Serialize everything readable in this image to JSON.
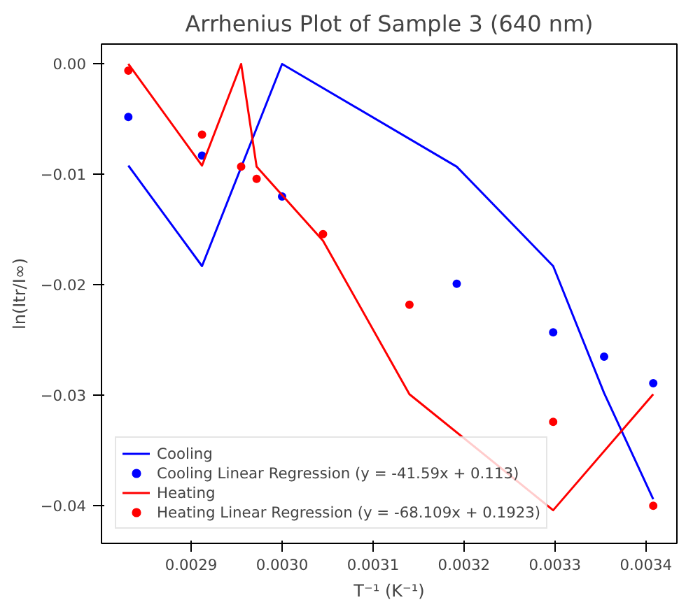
{
  "chart_data": {
    "type": "line",
    "title": "Arrhenius Plot of Sample 3 (640 nm)",
    "xlabel": "T⁻¹ (K⁻¹)",
    "ylabel": "ln(Itr/I∞)",
    "series": [
      {
        "name": "Cooling",
        "color": "#0000ff",
        "x": [
          0.002831,
          0.002912,
          0.003,
          0.003192,
          0.003298,
          0.003354,
          0.003408
        ],
        "values": [
          -0.0092,
          -0.0183,
          0.0,
          -0.0093,
          -0.0183,
          -0.0298,
          -0.0394
        ]
      },
      {
        "name": "Cooling Linear Regression (y = -41.59x + 0.113)",
        "type": "scatter",
        "marker": "circle",
        "color": "#0000ff",
        "x": [
          0.002831,
          0.002912,
          0.003,
          0.003192,
          0.003298,
          0.003354,
          0.003408
        ],
        "values": [
          -0.0048,
          -0.0083,
          -0.012,
          -0.0199,
          -0.0243,
          -0.0265,
          -0.0289
        ]
      },
      {
        "name": "Heating",
        "color": "#ff0000",
        "x": [
          0.002831,
          0.002912,
          0.002955,
          0.002972,
          0.003045,
          0.00314,
          0.003298,
          0.003408
        ],
        "values": [
          0.0,
          -0.0092,
          0.0,
          -0.0093,
          -0.016,
          -0.0299,
          -0.0404,
          -0.0299
        ]
      },
      {
        "name": "Heating Linear Regression (y = -68.109x + 0.1923)",
        "type": "scatter",
        "marker": "circle",
        "color": "#ff0000",
        "x": [
          0.002831,
          0.002912,
          0.002955,
          0.002972,
          0.003045,
          0.00314,
          0.003298,
          0.003408
        ],
        "values": [
          -0.0006,
          -0.0064,
          -0.0093,
          -0.0104,
          -0.0154,
          -0.0218,
          -0.0324,
          -0.04
        ]
      }
    ],
    "xlim": [
      0.0028015,
      0.003434
    ],
    "ylim": [
      -0.0434,
      0.0018
    ],
    "xticks": [
      0.0029,
      {
        "value": 0.003,
        "label": "0.0030"
      },
      0.0031,
      0.0032,
      0.0033,
      0.0034
    ],
    "yticks": [
      {
        "value": -0.04,
        "label": "−0.04"
      },
      {
        "value": -0.03,
        "label": "−0.03"
      },
      {
        "value": -0.02,
        "label": "−0.02"
      },
      {
        "value": -0.01,
        "label": "−0.01"
      },
      {
        "value": 0.0,
        "label": "0.00"
      }
    ],
    "grid": false,
    "legend": "bottom left"
  }
}
